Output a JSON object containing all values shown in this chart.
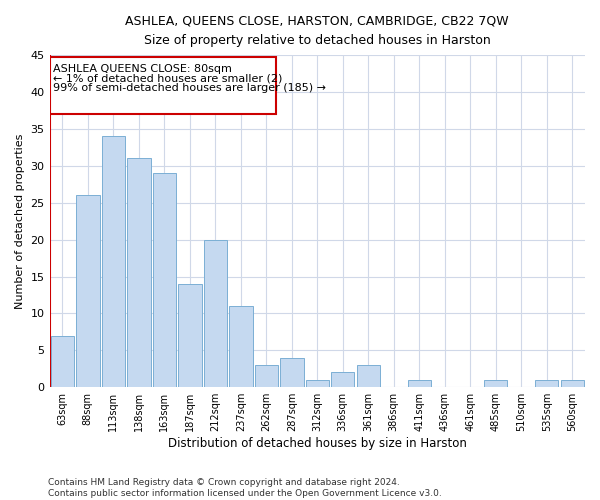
{
  "title1": "ASHLEA, QUEENS CLOSE, HARSTON, CAMBRIDGE, CB22 7QW",
  "title2": "Size of property relative to detached houses in Harston",
  "xlabel": "Distribution of detached houses by size in Harston",
  "ylabel": "Number of detached properties",
  "categories": [
    "63sqm",
    "88sqm",
    "113sqm",
    "138sqm",
    "163sqm",
    "187sqm",
    "212sqm",
    "237sqm",
    "262sqm",
    "287sqm",
    "312sqm",
    "336sqm",
    "361sqm",
    "386sqm",
    "411sqm",
    "436sqm",
    "461sqm",
    "485sqm",
    "510sqm",
    "535sqm",
    "560sqm"
  ],
  "values": [
    7,
    26,
    34,
    31,
    29,
    14,
    20,
    11,
    3,
    4,
    1,
    2,
    3,
    0,
    1,
    0,
    0,
    1,
    0,
    1,
    1
  ],
  "bar_color": "#c5d9f0",
  "bar_edge_color": "#7bafd4",
  "annotation_box_color": "#cc0000",
  "ann_line1": "ASHLEA QUEENS CLOSE: 80sqm",
  "ann_line2": "← 1% of detached houses are smaller (2)",
  "ann_line3": "99% of semi-detached houses are larger (185) →",
  "ylim": [
    0,
    45
  ],
  "yticks": [
    0,
    5,
    10,
    15,
    20,
    25,
    30,
    35,
    40,
    45
  ],
  "footer": "Contains HM Land Registry data © Crown copyright and database right 2024.\nContains public sector information licensed under the Open Government Licence v3.0.",
  "background_color": "#ffffff",
  "grid_color": "#d0d8e8"
}
